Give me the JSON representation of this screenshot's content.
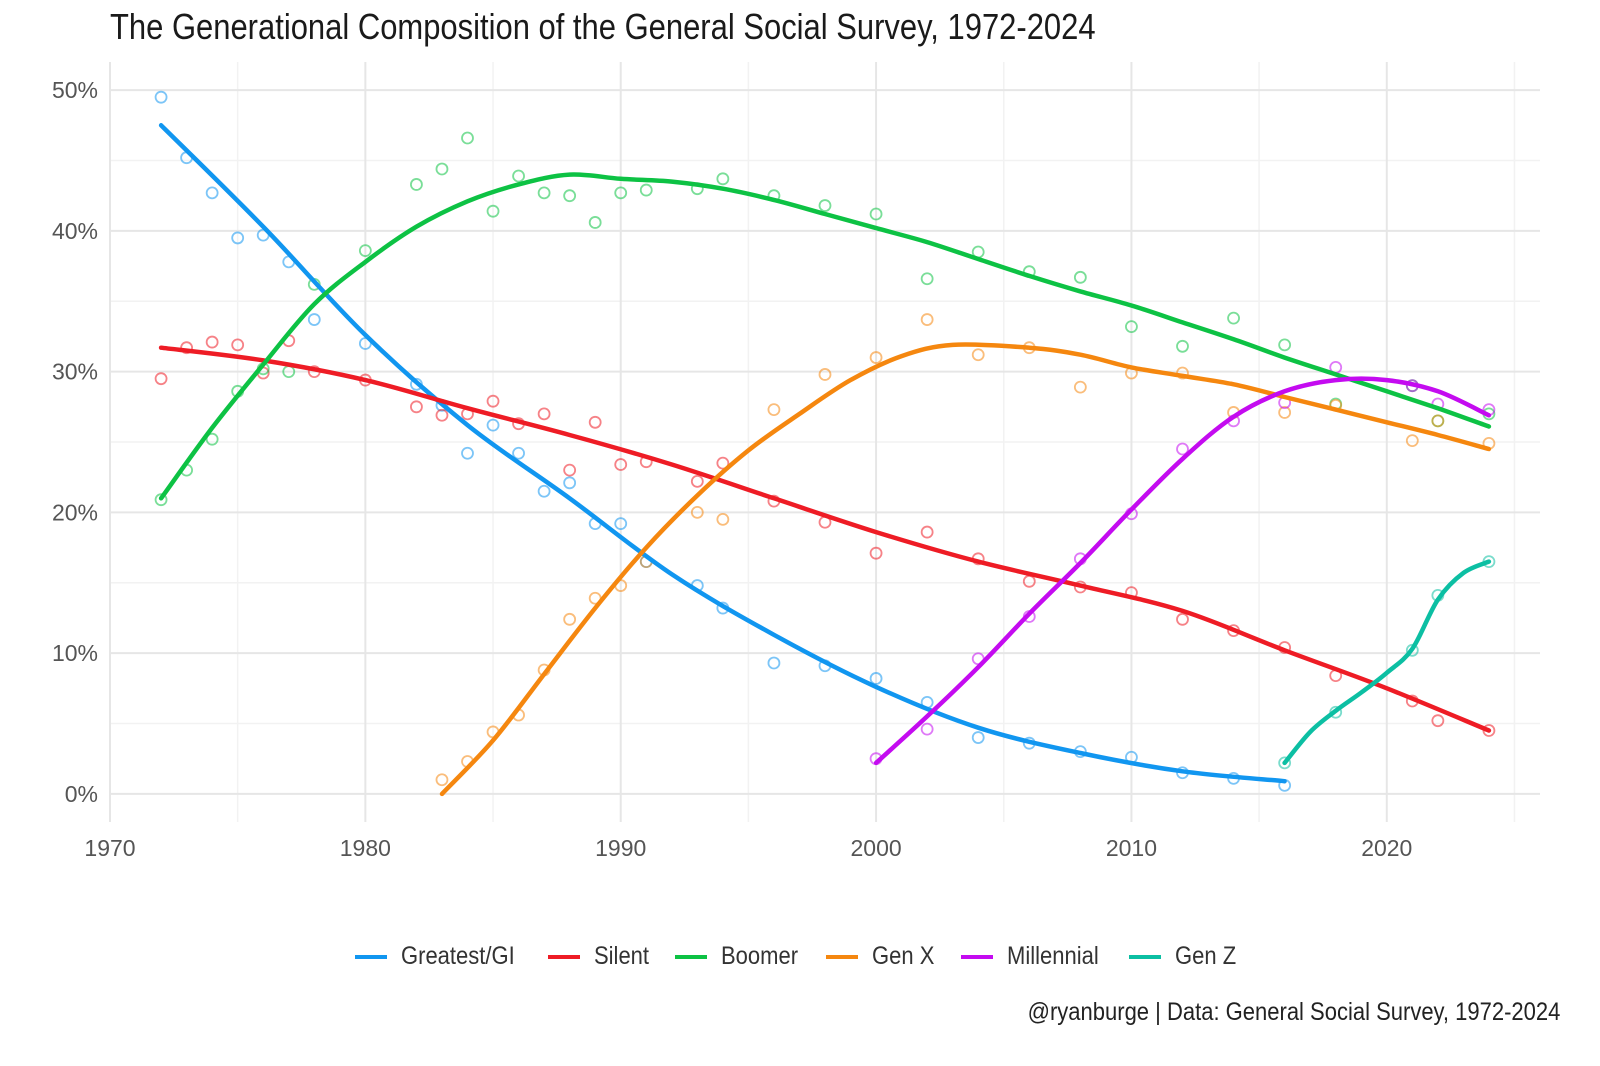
{
  "chart_data": {
    "type": "line",
    "title": "The Generational Composition of the General Social Survey, 1972-2024",
    "caption": "@ryanburge | Data: General Social Survey, 1972-2024",
    "xlabel": "",
    "ylabel": "",
    "xlim": [
      1970,
      2026
    ],
    "ylim": [
      -2,
      52
    ],
    "x_ticks": [
      1970,
      1980,
      1990,
      2000,
      2010,
      2020
    ],
    "x_tick_labels": [
      "1970",
      "1980",
      "1990",
      "2000",
      "2010",
      "2020"
    ],
    "y_ticks": [
      0,
      10,
      20,
      30,
      40,
      50
    ],
    "y_tick_labels": [
      "0%",
      "10%",
      "20%",
      "30%",
      "40%",
      "50%"
    ],
    "grid": true,
    "legend_position": "bottom",
    "series": [
      {
        "name": "Greatest/GI",
        "color": "#1196F0",
        "points": [
          [
            1972,
            49.5
          ],
          [
            1973,
            45.2
          ],
          [
            1974,
            42.7
          ],
          [
            1975,
            39.5
          ],
          [
            1976,
            39.7
          ],
          [
            1977,
            37.8
          ],
          [
            1978,
            33.7
          ],
          [
            1980,
            32.0
          ],
          [
            1982,
            29.1
          ],
          [
            1983,
            27.6
          ],
          [
            1984,
            24.2
          ],
          [
            1985,
            26.2
          ],
          [
            1986,
            24.2
          ],
          [
            1987,
            21.5
          ],
          [
            1988,
            22.1
          ],
          [
            1989,
            19.2
          ],
          [
            1990,
            19.2
          ],
          [
            1991,
            16.5
          ],
          [
            1993,
            14.8
          ],
          [
            1994,
            13.2
          ],
          [
            1996,
            9.3
          ],
          [
            1998,
            9.1
          ],
          [
            2000,
            8.2
          ],
          [
            2002,
            6.5
          ],
          [
            2004,
            4.0
          ],
          [
            2006,
            3.6
          ],
          [
            2008,
            3.0
          ],
          [
            2010,
            2.6
          ],
          [
            2012,
            1.5
          ],
          [
            2014,
            1.1
          ],
          [
            2016,
            0.6
          ]
        ],
        "trend": [
          [
            1972,
            47.5
          ],
          [
            1976,
            40.3
          ],
          [
            1980,
            32.6
          ],
          [
            1984,
            26.2
          ],
          [
            1988,
            21.0
          ],
          [
            1992,
            15.6
          ],
          [
            1996,
            11.3
          ],
          [
            2000,
            7.6
          ],
          [
            2004,
            4.7
          ],
          [
            2008,
            2.9
          ],
          [
            2012,
            1.6
          ],
          [
            2016,
            0.9
          ]
        ]
      },
      {
        "name": "Silent",
        "color": "#EE1C25",
        "points": [
          [
            1972,
            29.5
          ],
          [
            1973,
            31.7
          ],
          [
            1974,
            32.1
          ],
          [
            1975,
            31.9
          ],
          [
            1976,
            29.9
          ],
          [
            1977,
            32.2
          ],
          [
            1978,
            30.0
          ],
          [
            1980,
            29.4
          ],
          [
            1982,
            27.5
          ],
          [
            1983,
            26.9
          ],
          [
            1984,
            27.0
          ],
          [
            1985,
            27.9
          ],
          [
            1986,
            26.3
          ],
          [
            1987,
            27.0
          ],
          [
            1988,
            23.0
          ],
          [
            1989,
            26.4
          ],
          [
            1990,
            23.4
          ],
          [
            1991,
            23.6
          ],
          [
            1993,
            22.2
          ],
          [
            1994,
            23.5
          ],
          [
            1996,
            20.8
          ],
          [
            1998,
            19.3
          ],
          [
            2000,
            17.1
          ],
          [
            2002,
            18.6
          ],
          [
            2004,
            16.7
          ],
          [
            2006,
            15.1
          ],
          [
            2008,
            14.7
          ],
          [
            2010,
            14.3
          ],
          [
            2012,
            12.4
          ],
          [
            2014,
            11.6
          ],
          [
            2016,
            10.4
          ],
          [
            2018,
            8.4
          ],
          [
            2021,
            6.6
          ],
          [
            2022,
            5.2
          ],
          [
            2024,
            4.5
          ]
        ],
        "trend": [
          [
            1972,
            31.7
          ],
          [
            1976,
            30.8
          ],
          [
            1980,
            29.4
          ],
          [
            1984,
            27.4
          ],
          [
            1988,
            25.5
          ],
          [
            1992,
            23.4
          ],
          [
            1996,
            21.0
          ],
          [
            2000,
            18.6
          ],
          [
            2004,
            16.5
          ],
          [
            2008,
            14.8
          ],
          [
            2012,
            13.0
          ],
          [
            2016,
            10.2
          ],
          [
            2020,
            7.5
          ],
          [
            2024,
            4.5
          ]
        ]
      },
      {
        "name": "Boomer",
        "color": "#0DC244",
        "points": [
          [
            1972,
            20.9
          ],
          [
            1973,
            23.0
          ],
          [
            1974,
            25.2
          ],
          [
            1975,
            28.6
          ],
          [
            1976,
            30.2
          ],
          [
            1977,
            30.0
          ],
          [
            1978,
            36.2
          ],
          [
            1980,
            38.6
          ],
          [
            1982,
            43.3
          ],
          [
            1983,
            44.4
          ],
          [
            1984,
            46.6
          ],
          [
            1985,
            41.4
          ],
          [
            1986,
            43.9
          ],
          [
            1987,
            42.7
          ],
          [
            1988,
            42.5
          ],
          [
            1989,
            40.6
          ],
          [
            1990,
            42.7
          ],
          [
            1991,
            42.9
          ],
          [
            1993,
            43.0
          ],
          [
            1994,
            43.7
          ],
          [
            1996,
            42.5
          ],
          [
            1998,
            41.8
          ],
          [
            2000,
            41.2
          ],
          [
            2002,
            36.6
          ],
          [
            2004,
            38.5
          ],
          [
            2006,
            37.1
          ],
          [
            2008,
            36.7
          ],
          [
            2010,
            33.2
          ],
          [
            2012,
            31.8
          ],
          [
            2014,
            33.8
          ],
          [
            2016,
            31.9
          ],
          [
            2018,
            27.7
          ],
          [
            2021,
            29.0
          ],
          [
            2022,
            26.5
          ],
          [
            2024,
            27.0
          ]
        ],
        "trend": [
          [
            1972,
            21.0
          ],
          [
            1974,
            26.0
          ],
          [
            1976,
            30.5
          ],
          [
            1978,
            34.8
          ],
          [
            1980,
            37.8
          ],
          [
            1982,
            40.3
          ],
          [
            1984,
            42.1
          ],
          [
            1986,
            43.3
          ],
          [
            1988,
            44.0
          ],
          [
            1990,
            43.7
          ],
          [
            1992,
            43.5
          ],
          [
            1994,
            43.0
          ],
          [
            1996,
            42.2
          ],
          [
            1998,
            41.2
          ],
          [
            2000,
            40.2
          ],
          [
            2002,
            39.2
          ],
          [
            2004,
            38.0
          ],
          [
            2006,
            36.8
          ],
          [
            2008,
            35.7
          ],
          [
            2010,
            34.7
          ],
          [
            2012,
            33.5
          ],
          [
            2014,
            32.3
          ],
          [
            2016,
            31.0
          ],
          [
            2018,
            29.8
          ],
          [
            2020,
            28.6
          ],
          [
            2022,
            27.4
          ],
          [
            2024,
            26.1
          ]
        ]
      },
      {
        "name": "Gen X",
        "color": "#F5870F",
        "points": [
          [
            1983,
            1.0
          ],
          [
            1984,
            2.3
          ],
          [
            1985,
            4.4
          ],
          [
            1986,
            5.6
          ],
          [
            1987,
            8.8
          ],
          [
            1988,
            12.4
          ],
          [
            1989,
            13.9
          ],
          [
            1990,
            14.8
          ],
          [
            1991,
            16.5
          ],
          [
            1993,
            20.0
          ],
          [
            1994,
            19.5
          ],
          [
            1996,
            27.3
          ],
          [
            1998,
            29.8
          ],
          [
            2000,
            31.0
          ],
          [
            2002,
            33.7
          ],
          [
            2004,
            31.2
          ],
          [
            2006,
            31.7
          ],
          [
            2008,
            28.9
          ],
          [
            2010,
            29.9
          ],
          [
            2012,
            29.9
          ],
          [
            2014,
            27.1
          ],
          [
            2016,
            27.1
          ],
          [
            2018,
            27.6
          ],
          [
            2021,
            25.1
          ],
          [
            2022,
            26.5
          ],
          [
            2024,
            24.9
          ]
        ],
        "trend": [
          [
            1983,
            0.0
          ],
          [
            1985,
            3.8
          ],
          [
            1987,
            8.5
          ],
          [
            1989,
            13.2
          ],
          [
            1991,
            17.5
          ],
          [
            1993,
            21.2
          ],
          [
            1995,
            24.4
          ],
          [
            1997,
            27.0
          ],
          [
            1999,
            29.4
          ],
          [
            2001,
            31.1
          ],
          [
            2003,
            31.9
          ],
          [
            2006,
            31.7
          ],
          [
            2008,
            31.2
          ],
          [
            2010,
            30.3
          ],
          [
            2012,
            29.7
          ],
          [
            2014,
            29.1
          ],
          [
            2016,
            28.2
          ],
          [
            2018,
            27.3
          ],
          [
            2020,
            26.4
          ],
          [
            2022,
            25.5
          ],
          [
            2024,
            24.5
          ]
        ]
      },
      {
        "name": "Millennial",
        "color": "#C40BF0",
        "points": [
          [
            2000,
            2.5
          ],
          [
            2002,
            4.6
          ],
          [
            2004,
            9.6
          ],
          [
            2006,
            12.6
          ],
          [
            2008,
            16.7
          ],
          [
            2010,
            19.9
          ],
          [
            2012,
            24.5
          ],
          [
            2014,
            26.5
          ],
          [
            2016,
            27.8
          ],
          [
            2018,
            30.3
          ],
          [
            2021,
            29.0
          ],
          [
            2022,
            27.7
          ],
          [
            2024,
            27.3
          ]
        ],
        "trend": [
          [
            2000,
            2.2
          ],
          [
            2002,
            5.5
          ],
          [
            2004,
            9.0
          ],
          [
            2006,
            12.8
          ],
          [
            2008,
            16.4
          ],
          [
            2010,
            20.2
          ],
          [
            2012,
            23.8
          ],
          [
            2014,
            26.8
          ],
          [
            2016,
            28.6
          ],
          [
            2018,
            29.4
          ],
          [
            2020,
            29.4
          ],
          [
            2022,
            28.6
          ],
          [
            2024,
            26.9
          ]
        ]
      },
      {
        "name": "Gen Z",
        "color": "#0CBFA3",
        "points": [
          [
            2016,
            2.2
          ],
          [
            2018,
            5.8
          ],
          [
            2021,
            10.2
          ],
          [
            2022,
            14.1
          ],
          [
            2024,
            16.5
          ]
        ],
        "trend": [
          [
            2016,
            2.2
          ],
          [
            2017,
            4.4
          ],
          [
            2018,
            5.9
          ],
          [
            2019,
            7.2
          ],
          [
            2020,
            8.6
          ],
          [
            2021,
            10.3
          ],
          [
            2022,
            13.8
          ],
          [
            2023,
            15.7
          ],
          [
            2024,
            16.5
          ]
        ]
      }
    ]
  }
}
